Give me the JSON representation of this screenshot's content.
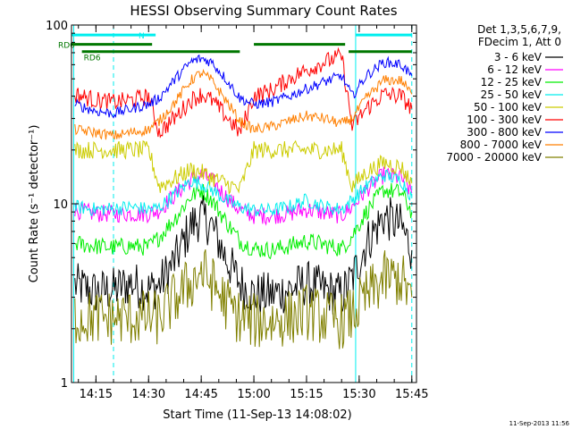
{
  "chart_data": {
    "type": "line",
    "title": "HESSI Observing Summary Count Rates",
    "xlabel": "Start Time (11-Sep-13 14:08:02)",
    "ylabel": "Count Rate (s⁻¹ detector⁻¹)",
    "y_scale": "log",
    "ylim": [
      1,
      100
    ],
    "xlim": [
      "14:08:02",
      "15:46:20"
    ],
    "x_ticks": [
      "14:15",
      "14:30",
      "14:45",
      "15:00",
      "15:15",
      "15:30",
      "15:45"
    ],
    "y_ticks": [
      "1",
      "10",
      "100"
    ],
    "grid": false,
    "legend_position": "right",
    "legend_header": [
      "Det 1,3,5,6,7,9,",
      "FDecim 1, Att 0"
    ],
    "footer_date": "11-Sep-2013 11:56",
    "colors": {
      "3-6": "#000000",
      "6-12": "#ff00ff",
      "12-25": "#00ee00",
      "25-50": "#00eeee",
      "50-100": "#cccc00",
      "100-300": "#ff0000",
      "300-800": "#0000ff",
      "800-7000": "#ff7f00",
      "7000-20000": "#808000",
      "markers": "#007700",
      "night": "#00eeee"
    },
    "series": [
      {
        "name": "3 - 6 keV",
        "key": "3-6",
        "x": [
          "14:09",
          "14:15",
          "14:20",
          "14:25",
          "14:30",
          "14:33",
          "14:38",
          "14:42",
          "14:45",
          "14:48",
          "14:52",
          "14:56",
          "15:00",
          "15:05",
          "15:10",
          "15:15",
          "15:20",
          "15:25",
          "15:28",
          "15:32",
          "15:37",
          "15:42",
          "15:45"
        ],
        "y": [
          3.5,
          3.2,
          3.3,
          3.6,
          3.3,
          3.5,
          5.0,
          7.5,
          8.5,
          7.5,
          5.0,
          3.6,
          3.1,
          3.1,
          3.3,
          3.6,
          3.3,
          3.1,
          3.8,
          6.0,
          8.5,
          7.5,
          5.5
        ]
      },
      {
        "name": "6 - 12 keV",
        "key": "6-12",
        "x": [
          "14:09",
          "14:15",
          "14:20",
          "14:25",
          "14:30",
          "14:33",
          "14:38",
          "14:42",
          "14:45",
          "14:48",
          "14:52",
          "14:56",
          "15:00",
          "15:05",
          "15:10",
          "15:15",
          "15:20",
          "15:25",
          "15:28",
          "15:32",
          "15:37",
          "15:42",
          "15:45"
        ],
        "y": [
          9.2,
          8.8,
          8.8,
          8.8,
          8.8,
          9.2,
          11.5,
          13.5,
          14.5,
          13.5,
          11.0,
          9.2,
          8.6,
          8.6,
          8.8,
          9.3,
          8.9,
          8.6,
          9.6,
          12.0,
          14.5,
          14.0,
          11.5
        ]
      },
      {
        "name": "12 - 25 keV",
        "key": "12-25",
        "x": [
          "14:09",
          "14:15",
          "14:20",
          "14:25",
          "14:30",
          "14:33",
          "14:38",
          "14:42",
          "14:45",
          "14:48",
          "14:52",
          "14:56",
          "15:00",
          "15:05",
          "15:10",
          "15:15",
          "15:20",
          "15:25",
          "15:28",
          "15:32",
          "15:37",
          "15:42",
          "15:45"
        ],
        "y": [
          6.0,
          5.8,
          5.7,
          5.8,
          5.7,
          6.5,
          8.5,
          11.0,
          12.0,
          10.5,
          8.0,
          6.2,
          5.6,
          5.5,
          5.8,
          6.2,
          5.9,
          5.6,
          6.6,
          9.0,
          12.0,
          11.5,
          9.0
        ]
      },
      {
        "name": "25 - 50 keV",
        "key": "25-50",
        "x": [
          "14:09",
          "14:15",
          "14:20",
          "14:25",
          "14:30",
          "14:33",
          "14:38",
          "14:42",
          "14:45",
          "14:48",
          "14:52",
          "14:56",
          "15:00",
          "15:05",
          "15:10",
          "15:15",
          "15:20",
          "15:25",
          "15:28",
          "15:32",
          "15:37",
          "15:42",
          "15:45"
        ],
        "y": [
          9.6,
          9.3,
          9.4,
          9.6,
          9.3,
          9.5,
          11.5,
          13.5,
          13.0,
          12.0,
          10.5,
          9.6,
          9.2,
          9.2,
          9.6,
          10.5,
          9.6,
          9.3,
          10.5,
          12.5,
          14.5,
          13.5,
          11.0
        ]
      },
      {
        "name": "50 - 100 keV",
        "key": "50-100",
        "x": [
          "14:09",
          "14:15",
          "14:20",
          "14:25",
          "14:30",
          "14:33",
          "14:38",
          "14:42",
          "14:45",
          "14:48",
          "14:52",
          "14:56",
          "15:00",
          "15:05",
          "15:10",
          "15:15",
          "15:20",
          "15:25",
          "15:28",
          "15:32",
          "15:37",
          "15:42",
          "15:45"
        ],
        "y": [
          20.0,
          20.0,
          20.0,
          20.0,
          20.0,
          12.5,
          14.0,
          15.5,
          15.0,
          14.0,
          13.0,
          12.0,
          20.0,
          20.0,
          20.0,
          20.0,
          20.0,
          20.0,
          12.5,
          15.0,
          17.0,
          16.0,
          13.0
        ]
      },
      {
        "name": "100 - 300 keV",
        "key": "100-300",
        "x": [
          "14:09",
          "14:15",
          "14:20",
          "14:25",
          "14:30",
          "14:33",
          "14:38",
          "14:42",
          "14:45",
          "14:48",
          "14:52",
          "14:56",
          "15:00",
          "15:05",
          "15:10",
          "15:15",
          "15:20",
          "15:25",
          "15:28",
          "15:32",
          "15:37",
          "15:42",
          "15:45"
        ],
        "y": [
          41,
          38,
          37,
          38,
          40,
          25,
          31,
          38,
          41,
          38,
          31,
          25,
          40,
          43,
          50,
          56,
          62,
          67,
          27,
          34,
          41,
          40,
          34
        ]
      },
      {
        "name": "300 - 800 keV",
        "key": "300-800",
        "x": [
          "14:09",
          "14:15",
          "14:20",
          "14:25",
          "14:30",
          "14:33",
          "14:38",
          "14:42",
          "14:45",
          "14:48",
          "14:52",
          "14:56",
          "15:00",
          "15:05",
          "15:10",
          "15:15",
          "15:20",
          "15:25",
          "15:28",
          "15:32",
          "15:37",
          "15:42",
          "15:45"
        ],
        "y": [
          36,
          33,
          32,
          34,
          36,
          39,
          51,
          62,
          65,
          62,
          50,
          39,
          36,
          37,
          40,
          44,
          48,
          52,
          40,
          52,
          62,
          60,
          52
        ]
      },
      {
        "name": "800 - 7000 keV",
        "key": "800-7000",
        "x": [
          "14:09",
          "14:15",
          "14:20",
          "14:25",
          "14:30",
          "14:33",
          "14:38",
          "14:42",
          "14:45",
          "14:48",
          "14:52",
          "14:56",
          "15:00",
          "15:05",
          "15:10",
          "15:15",
          "15:20",
          "15:25",
          "15:28",
          "15:32",
          "15:37",
          "15:42",
          "15:45"
        ],
        "y": [
          26,
          25,
          24,
          25,
          26,
          29,
          38,
          49,
          54,
          49,
          38,
          29,
          26,
          27,
          29,
          31,
          30,
          28,
          30,
          39,
          49,
          49,
          41
        ]
      },
      {
        "name": "7000 - 20000 keV",
        "key": "7000-20000",
        "x": [
          "14:09",
          "14:15",
          "14:20",
          "14:25",
          "14:30",
          "14:33",
          "14:38",
          "14:42",
          "14:45",
          "14:48",
          "14:52",
          "14:56",
          "15:00",
          "15:05",
          "15:10",
          "15:15",
          "15:20",
          "15:25",
          "15:28",
          "15:32",
          "15:37",
          "15:42",
          "15:45"
        ],
        "y": [
          2.3,
          2.3,
          2.3,
          2.3,
          2.3,
          2.3,
          3.0,
          3.6,
          4.2,
          3.6,
          2.8,
          2.3,
          2.2,
          2.2,
          2.3,
          2.5,
          2.3,
          2.2,
          2.4,
          3.0,
          3.8,
          3.8,
          3.0
        ]
      }
    ],
    "status_bars": [
      {
        "label": "N",
        "y": 88,
        "start": "14:08:02",
        "end": "14:32",
        "color_key": "night"
      },
      {
        "label": "",
        "y": 88,
        "start": "15:29",
        "end": "15:45",
        "color_key": "night"
      },
      {
        "label": "RD0",
        "y": 78,
        "start": "14:08:02",
        "end": "14:31",
        "color_key": "markers"
      },
      {
        "label": "",
        "y": 78,
        "start": "15:00",
        "end": "15:26",
        "color_key": "markers"
      },
      {
        "label": "RD6",
        "y": 71,
        "start": "14:11",
        "end": "14:56",
        "color_key": "markers"
      },
      {
        "label": "",
        "y": 71,
        "start": "15:27",
        "end": "15:45",
        "color_key": "markers"
      }
    ],
    "night_lines": [
      {
        "time": "14:08:40",
        "style": "solid"
      },
      {
        "time": "14:20",
        "style": "dashed"
      },
      {
        "time": "15:29",
        "style": "solid"
      },
      {
        "time": "15:45",
        "style": "dashed"
      }
    ]
  }
}
